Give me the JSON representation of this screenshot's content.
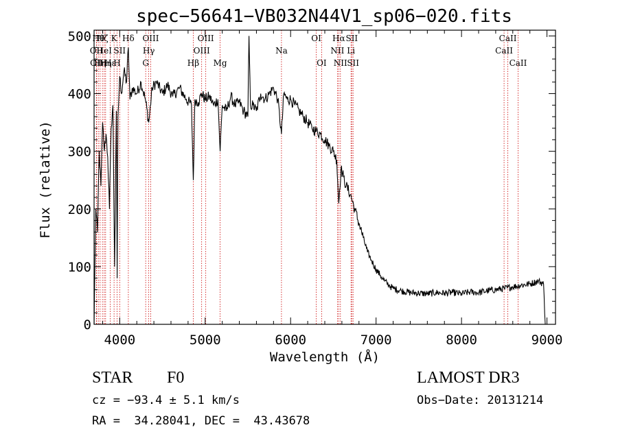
{
  "chart_data": {
    "type": "line",
    "title": "spec−56641−VB032N44V1_sp06−020.fits",
    "xlabel": "Wavelength (Å)",
    "ylabel": "Flux (relative)",
    "xlim": [
      3700,
      9100
    ],
    "ylim": [
      0,
      510
    ],
    "xticks": [
      4000,
      5000,
      6000,
      7000,
      8000,
      9000
    ],
    "yticks": [
      0,
      100,
      200,
      300,
      400,
      500
    ],
    "xtick_labels": [
      "4000",
      "5000",
      "6000",
      "7000",
      "8000",
      "9000"
    ],
    "ytick_labels": [
      "0",
      "100",
      "200",
      "300",
      "400",
      "500"
    ],
    "series": [
      {
        "name": "spectrum",
        "color": "#000000",
        "x": [
          3700,
          3720,
          3740,
          3760,
          3780,
          3800,
          3820,
          3840,
          3860,
          3880,
          3900,
          3920,
          3940,
          3960,
          3970,
          3980,
          4000,
          4020,
          4050,
          4080,
          4101,
          4120,
          4150,
          4200,
          4250,
          4300,
          4340,
          4380,
          4430,
          4500,
          4560,
          4620,
          4700,
          4780,
          4840,
          4861,
          4880,
          4920,
          4960,
          5000,
          5050,
          5100,
          5150,
          5175,
          5200,
          5250,
          5300,
          5350,
          5400,
          5450,
          5500,
          5513,
          5530,
          5560,
          5600,
          5650,
          5700,
          5750,
          5800,
          5850,
          5893,
          5920,
          5960,
          6000,
          6050,
          6100,
          6150,
          6200,
          6250,
          6300,
          6350,
          6400,
          6450,
          6500,
          6540,
          6563,
          6590,
          6620,
          6650,
          6700,
          6750,
          6800,
          6850,
          6900,
          6950,
          7000,
          7050,
          7100,
          7150,
          7200,
          7300,
          7400,
          7500,
          7600,
          7700,
          7800,
          7900,
          8000,
          8100,
          8200,
          8300,
          8400,
          8500,
          8600,
          8700,
          8800,
          8900,
          8960,
          8980
        ],
        "values": [
          0,
          200,
          160,
          300,
          240,
          350,
          300,
          330,
          290,
          200,
          340,
          380,
          100,
          370,
          80,
          360,
          430,
          400,
          440,
          420,
          480,
          390,
          410,
          400,
          420,
          390,
          350,
          410,
          420,
          400,
          415,
          395,
          410,
          390,
          380,
          250,
          390,
          385,
          400,
          390,
          395,
          380,
          390,
          300,
          380,
          370,
          395,
          380,
          385,
          370,
          360,
          500,
          380,
          380,
          370,
          400,
          390,
          400,
          410,
          390,
          330,
          400,
          390,
          390,
          380,
          370,
          360,
          350,
          340,
          335,
          330,
          320,
          310,
          300,
          285,
          210,
          270,
          255,
          240,
          225,
          200,
          175,
          150,
          125,
          110,
          95,
          85,
          75,
          68,
          62,
          58,
          55,
          54,
          53,
          55,
          54,
          55,
          53,
          56,
          55,
          58,
          60,
          62,
          65,
          68,
          70,
          75,
          70,
          0
        ]
      }
    ],
    "lines": [
      {
        "wl": 3727,
        "label": "OII",
        "row": 1
      },
      {
        "wl": 3730,
        "label": "OII",
        "row": 2
      },
      {
        "wl": 3750,
        "label": "Hθ",
        "row": 0
      },
      {
        "wl": 3771,
        "label": "Hη",
        "row": 2
      },
      {
        "wl": 3798,
        "label": "Hζ",
        "row": 0
      },
      {
        "wl": 3819,
        "label": "HeI",
        "row": 1
      },
      {
        "wl": 3835,
        "label": "Hη",
        "row": 2
      },
      {
        "wl": 3889,
        "label": "Hε",
        "row": 2
      },
      {
        "wl": 3934,
        "label": "K",
        "row": 0
      },
      {
        "wl": 3969,
        "label": "H",
        "row": 2
      },
      {
        "wl": 4000,
        "label": "SII",
        "row": 1
      },
      {
        "wl": 4101,
        "label": "Hδ",
        "row": 0
      },
      {
        "wl": 4304,
        "label": "G",
        "row": 2
      },
      {
        "wl": 4340,
        "label": "Hγ",
        "row": 1
      },
      {
        "wl": 4363,
        "label": "OIII",
        "row": 0
      },
      {
        "wl": 4861,
        "label": "Hβ",
        "row": 2
      },
      {
        "wl": 4959,
        "label": "OIII",
        "row": 1
      },
      {
        "wl": 5007,
        "label": "OIII",
        "row": 0
      },
      {
        "wl": 5175,
        "label": "Mg",
        "row": 2
      },
      {
        "wl": 5893,
        "label": "Na",
        "row": 1
      },
      {
        "wl": 6300,
        "label": "OI",
        "row": 0
      },
      {
        "wl": 6363,
        "label": "OI",
        "row": 2
      },
      {
        "wl": 6548,
        "label": "NII",
        "row": 1
      },
      {
        "wl": 6563,
        "label": "Hα",
        "row": 0
      },
      {
        "wl": 6583,
        "label": "NII",
        "row": 2
      },
      {
        "wl": 6707,
        "label": "Li",
        "row": 1
      },
      {
        "wl": 6716,
        "label": "SII",
        "row": 0
      },
      {
        "wl": 6731,
        "label": "SII",
        "row": 2
      },
      {
        "wl": 8498,
        "label": "CaII",
        "row": 1
      },
      {
        "wl": 8542,
        "label": "CaII",
        "row": 0
      },
      {
        "wl": 8662,
        "label": "CaII",
        "row": 2
      }
    ]
  },
  "info": {
    "object_class": "STAR",
    "subclass": "F0",
    "survey": "LAMOST DR3",
    "cz": "cz = −93.4 ± 5.1 km/s",
    "obs_date": "Obs−Date: 20131214",
    "coords": "RA =  34.28041, DEC =  43.43678"
  },
  "colors": {
    "spectrum": "#000000",
    "line_marker": "#cc0000",
    "axes": "#000000"
  }
}
